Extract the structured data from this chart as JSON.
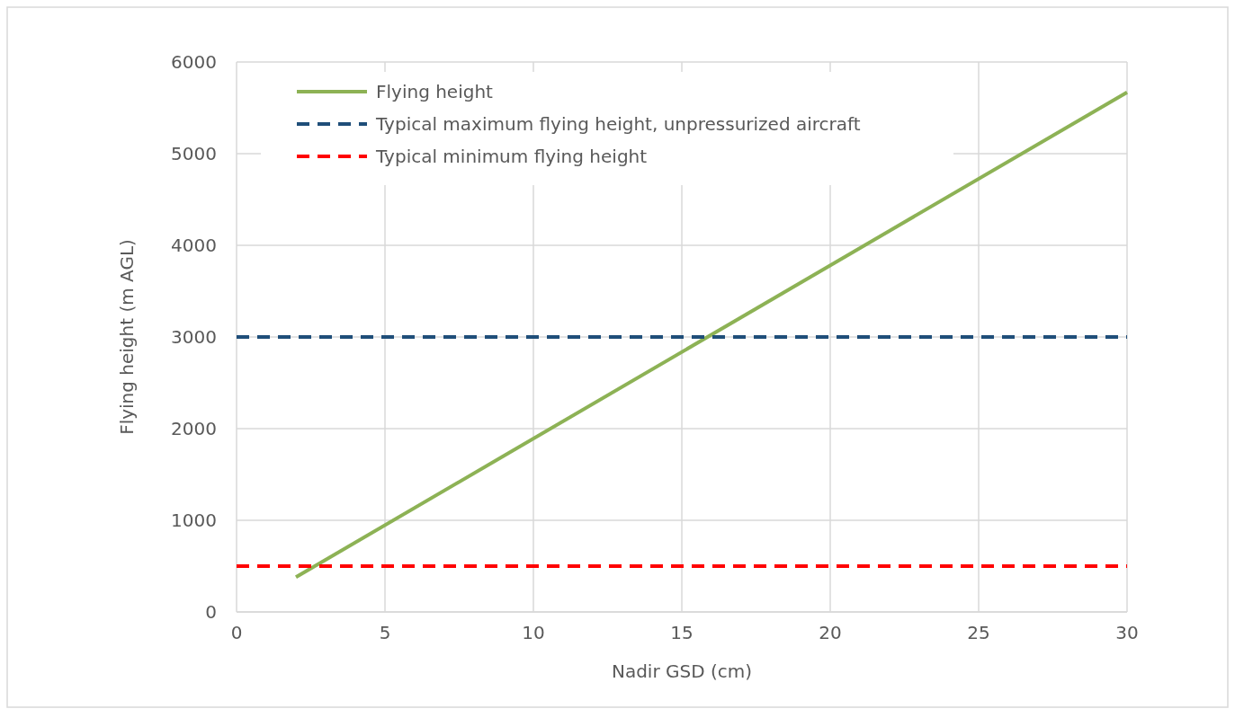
{
  "chart_data": {
    "type": "line",
    "xlabel": "Nadir GSD (cm)",
    "ylabel": "Flying height (m AGL)",
    "xlim": [
      0,
      30
    ],
    "xticks": [
      0,
      5,
      10,
      15,
      20,
      25,
      30
    ],
    "ylim": [
      0,
      6000
    ],
    "yticks": [
      0,
      1000,
      2000,
      3000,
      4000,
      5000,
      6000
    ],
    "grid": true,
    "legend": "top left",
    "series": [
      {
        "name": "Flying height",
        "color": "#8db255",
        "x": [
          2,
          30
        ],
        "values": [
          380,
          5670
        ],
        "line_style": "solid"
      },
      {
        "name": "Typical maximum flying height, unpressurized aircraft",
        "color": "#1f4e79",
        "x": [
          0,
          30
        ],
        "values": [
          3000,
          3000
        ],
        "line_style": "dashed"
      },
      {
        "name": "Typical minimum flying height",
        "color": "#ff0000",
        "x": [
          0,
          30
        ],
        "values": [
          500,
          500
        ],
        "line_style": "dashed"
      }
    ]
  }
}
